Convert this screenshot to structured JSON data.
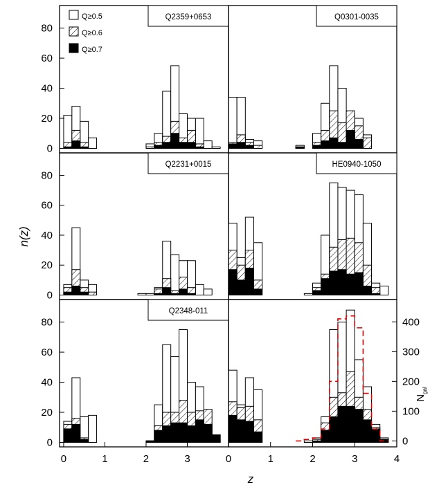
{
  "figure": {
    "xlabel": "z",
    "ylabel": "n(z)",
    "right_axis_label": "N",
    "right_axis_label_sub": "gal"
  },
  "legend": [
    {
      "label": "Q≥0.5",
      "style": "open"
    },
    {
      "label": "Q≥0.6",
      "style": "hatched"
    },
    {
      "label": "Q≥0.7",
      "style": "filled"
    }
  ],
  "colors": {
    "open": "#ffffff",
    "hatched": "#000000",
    "filled": "#000000",
    "total_dashed": "#e00000",
    "frame": "#000000"
  },
  "chart_data": [
    {
      "type": "histogram",
      "panel": "top-left",
      "label": "Q2359+0653",
      "xlim": [
        -0.1,
        4.0
      ],
      "ylim": [
        -3,
        95
      ],
      "bin_width": 0.2,
      "bin_starts": [
        0.0,
        0.2,
        0.4,
        0.6,
        1.8,
        2.0,
        2.2,
        2.4,
        2.6,
        2.8,
        3.0,
        3.2,
        3.4,
        3.6
      ],
      "series": [
        {
          "name": "Q≥0.5",
          "values": [
            22,
            28,
            18,
            7,
            0,
            3,
            10,
            38,
            55,
            23,
            20,
            20,
            5,
            1
          ]
        },
        {
          "name": "Q≥0.6",
          "values": [
            4,
            12,
            4,
            0,
            0,
            1,
            4,
            8,
            18,
            7,
            12,
            3,
            0,
            0
          ]
        },
        {
          "name": "Q≥0.7",
          "values": [
            1,
            5,
            1,
            0,
            0,
            0,
            2,
            4,
            10,
            4,
            4,
            1,
            0,
            0
          ]
        }
      ],
      "xticks": [],
      "yticks": [
        0,
        20,
        40,
        60,
        80
      ]
    },
    {
      "type": "histogram",
      "panel": "top-right",
      "label": "Q0301-0035",
      "xlim": [
        0.0,
        4.0
      ],
      "ylim": [
        -3,
        95
      ],
      "bin_width": 0.2,
      "bin_starts": [
        0.0,
        0.2,
        0.4,
        0.6,
        1.6,
        1.8,
        2.0,
        2.2,
        2.4,
        2.6,
        2.8,
        3.0,
        3.2,
        3.4,
        3.6
      ],
      "series": [
        {
          "name": "Q≥0.5",
          "values": [
            34,
            34,
            6,
            5,
            2,
            0,
            10,
            30,
            55,
            40,
            23,
            20,
            9,
            0,
            0
          ]
        },
        {
          "name": "Q≥0.6",
          "values": [
            4,
            9,
            4,
            2,
            1,
            0,
            4,
            12,
            25,
            17,
            25,
            15,
            7,
            0,
            0
          ]
        },
        {
          "name": "Q≥0.7",
          "values": [
            3,
            4,
            2,
            0,
            1,
            0,
            2,
            5,
            7,
            4,
            12,
            6,
            0,
            0,
            0
          ]
        }
      ],
      "xticks": [],
      "yticks": []
    },
    {
      "type": "histogram",
      "panel": "middle-left",
      "label": "Q2231+0015",
      "xlim": [
        -0.1,
        4.0
      ],
      "ylim": [
        -3,
        95
      ],
      "bin_width": 0.2,
      "bin_starts": [
        0.0,
        0.2,
        0.4,
        0.6,
        1.6,
        1.8,
        2.0,
        2.2,
        2.4,
        2.6,
        2.8,
        3.0,
        3.2,
        3.4,
        3.6
      ],
      "series": [
        {
          "name": "Q≥0.5",
          "values": [
            7,
            45,
            10,
            7,
            0,
            1,
            1,
            5,
            36,
            27,
            23,
            23,
            7,
            4,
            0
          ]
        },
        {
          "name": "Q≥0.6",
          "values": [
            5,
            17,
            5,
            2,
            0,
            0,
            0,
            4,
            11,
            3,
            12,
            5,
            0,
            0,
            0
          ]
        },
        {
          "name": "Q≥0.7",
          "values": [
            2,
            6,
            2,
            0,
            0,
            0,
            0,
            1,
            5,
            1,
            4,
            1,
            0,
            0,
            0
          ]
        }
      ],
      "xticks": [],
      "yticks": [
        0,
        20,
        40,
        60,
        80
      ]
    },
    {
      "type": "histogram",
      "panel": "middle-right",
      "label": "HE0940-1050",
      "xlim": [
        0.0,
        4.0
      ],
      "ylim": [
        -3,
        95
      ],
      "bin_width": 0.2,
      "bin_starts": [
        0.0,
        0.2,
        0.4,
        0.6,
        1.6,
        1.8,
        2.0,
        2.2,
        2.4,
        2.6,
        2.8,
        3.0,
        3.2,
        3.4,
        3.6
      ],
      "series": [
        {
          "name": "Q≥0.5",
          "values": [
            48,
            25,
            52,
            35,
            0,
            1,
            8,
            40,
            75,
            72,
            70,
            67,
            48,
            8,
            6
          ]
        },
        {
          "name": "Q≥0.6",
          "values": [
            30,
            20,
            30,
            10,
            0,
            0,
            5,
            14,
            32,
            37,
            38,
            35,
            20,
            5,
            0
          ]
        },
        {
          "name": "Q≥0.7",
          "values": [
            17,
            10,
            18,
            4,
            0,
            0,
            3,
            11,
            16,
            17,
            14,
            15,
            6,
            1,
            0
          ]
        }
      ],
      "xticks": [],
      "yticks": []
    },
    {
      "type": "histogram",
      "panel": "bottom-left",
      "label": "Q2348-011",
      "xlim": [
        -0.1,
        4.0
      ],
      "ylim": [
        -3,
        95
      ],
      "bin_width": 0.2,
      "bin_starts": [
        0.0,
        0.2,
        0.4,
        0.6,
        1.6,
        1.8,
        2.0,
        2.2,
        2.4,
        2.6,
        2.8,
        3.0,
        3.2,
        3.4,
        3.6
      ],
      "series": [
        {
          "name": "Q≥0.5",
          "values": [
            14,
            43,
            17,
            18,
            0,
            0,
            1,
            25,
            65,
            57,
            75,
            40,
            37,
            12,
            2
          ]
        },
        {
          "name": "Q≥0.6",
          "values": [
            12,
            16,
            3,
            0,
            0,
            0,
            1,
            11,
            20,
            20,
            28,
            20,
            21,
            22,
            5
          ]
        },
        {
          "name": "Q≥0.7",
          "values": [
            9,
            12,
            2,
            0,
            0,
            0,
            1,
            8,
            11,
            13,
            13,
            11,
            15,
            12,
            5
          ]
        }
      ],
      "xticks": [
        0,
        1,
        2,
        3
      ],
      "yticks": [
        0,
        20,
        40,
        60,
        80
      ]
    },
    {
      "type": "histogram",
      "panel": "bottom-right",
      "label": "",
      "xlim": [
        0.0,
        4.0
      ],
      "ylim": [
        -3,
        95
      ],
      "bin_width": 0.2,
      "bin_starts": [
        0.0,
        0.2,
        0.4,
        0.6,
        1.6,
        1.8,
        2.0,
        2.2,
        2.4,
        2.6,
        2.8,
        3.0,
        3.2,
        3.4,
        3.6
      ],
      "series": [
        {
          "name": "Q≥0.5",
          "values": [
            48,
            25,
            43,
            35,
            0,
            1,
            3,
            17,
            75,
            80,
            88,
            55,
            37,
            12,
            3
          ]
        },
        {
          "name": "Q≥0.6",
          "values": [
            27,
            23,
            24,
            15,
            0,
            0,
            2,
            13,
            30,
            33,
            47,
            30,
            22,
            10,
            2
          ]
        },
        {
          "name": "Q≥0.7",
          "values": [
            18,
            15,
            14,
            7,
            0,
            0,
            1,
            8,
            17,
            24,
            24,
            22,
            15,
            9,
            2
          ]
        }
      ],
      "total_dashed": {
        "bin_starts": [
          1.6,
          1.8,
          2.0,
          2.2,
          2.4,
          2.6,
          2.8,
          3.0,
          3.2,
          3.4,
          3.6
        ],
        "values": [
          0,
          5,
          10,
          40,
          200,
          410,
          420,
          380,
          160,
          40,
          0
        ],
        "axis": "right"
      },
      "right_axis": {
        "ylim": [
          -20,
          475
        ],
        "yticks": [
          0,
          100,
          200,
          300,
          400
        ]
      },
      "xticks": [
        0,
        1,
        2,
        3,
        4
      ],
      "yticks": []
    }
  ]
}
